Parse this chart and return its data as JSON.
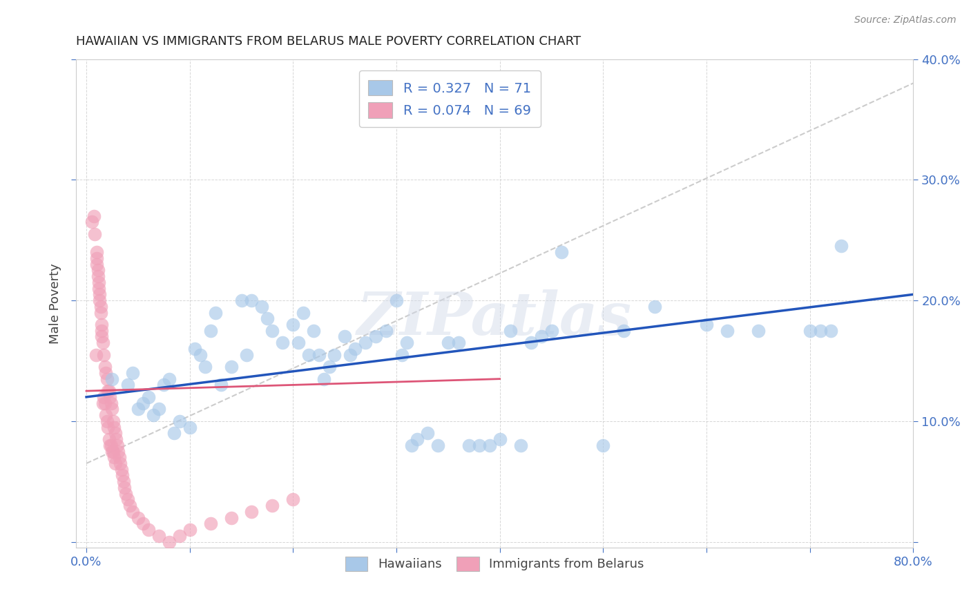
{
  "title": "HAWAIIAN VS IMMIGRANTS FROM BELARUS MALE POVERTY CORRELATION CHART",
  "source": "Source: ZipAtlas.com",
  "ylabel": "Male Poverty",
  "xlim": [
    0.0,
    0.8
  ],
  "ylim": [
    0.0,
    0.4
  ],
  "hawaiians_color": "#a8c8e8",
  "belarus_color": "#f0a0b8",
  "hawaiians_line_color": "#2255bb",
  "belarus_line_color": "#dd5577",
  "dashed_line_color": "#cccccc",
  "watermark": "ZIPatlas",
  "background_color": "#ffffff",
  "hawaii_R": 0.327,
  "hawaii_N": 71,
  "belarus_R": 0.074,
  "belarus_N": 69,
  "hawaii_line_x0": 0.0,
  "hawaii_line_y0": 0.12,
  "hawaii_line_x1": 0.8,
  "hawaii_line_y1": 0.205,
  "belarus_line_x0": 0.0,
  "belarus_line_y0": 0.125,
  "belarus_line_x1": 0.4,
  "belarus_line_y1": 0.135,
  "dashed_line_x0": 0.0,
  "dashed_line_y0": 0.065,
  "dashed_line_x1": 0.8,
  "dashed_line_y1": 0.38,
  "hawaii_pts_x": [
    0.025,
    0.04,
    0.045,
    0.05,
    0.055,
    0.06,
    0.065,
    0.07,
    0.075,
    0.08,
    0.085,
    0.09,
    0.1,
    0.105,
    0.11,
    0.115,
    0.12,
    0.125,
    0.13,
    0.14,
    0.15,
    0.155,
    0.16,
    0.17,
    0.175,
    0.18,
    0.19,
    0.2,
    0.205,
    0.21,
    0.215,
    0.22,
    0.225,
    0.23,
    0.235,
    0.24,
    0.25,
    0.255,
    0.26,
    0.27,
    0.28,
    0.29,
    0.3,
    0.305,
    0.31,
    0.315,
    0.32,
    0.33,
    0.34,
    0.35,
    0.36,
    0.37,
    0.38,
    0.39,
    0.4,
    0.41,
    0.42,
    0.43,
    0.44,
    0.45,
    0.46,
    0.5,
    0.52,
    0.55,
    0.6,
    0.62,
    0.65,
    0.7,
    0.71,
    0.72,
    0.73
  ],
  "hawaii_pts_y": [
    0.135,
    0.13,
    0.14,
    0.11,
    0.115,
    0.12,
    0.105,
    0.11,
    0.13,
    0.135,
    0.09,
    0.1,
    0.095,
    0.16,
    0.155,
    0.145,
    0.175,
    0.19,
    0.13,
    0.145,
    0.2,
    0.155,
    0.2,
    0.195,
    0.185,
    0.175,
    0.165,
    0.18,
    0.165,
    0.19,
    0.155,
    0.175,
    0.155,
    0.135,
    0.145,
    0.155,
    0.17,
    0.155,
    0.16,
    0.165,
    0.17,
    0.175,
    0.2,
    0.155,
    0.165,
    0.08,
    0.085,
    0.09,
    0.08,
    0.165,
    0.165,
    0.08,
    0.08,
    0.08,
    0.085,
    0.175,
    0.08,
    0.165,
    0.17,
    0.175,
    0.24,
    0.08,
    0.175,
    0.195,
    0.18,
    0.175,
    0.175,
    0.175,
    0.175,
    0.175,
    0.245
  ],
  "belarus_pts_x": [
    0.005,
    0.007,
    0.008,
    0.009,
    0.01,
    0.01,
    0.01,
    0.011,
    0.011,
    0.012,
    0.012,
    0.013,
    0.013,
    0.014,
    0.014,
    0.015,
    0.015,
    0.015,
    0.016,
    0.016,
    0.017,
    0.017,
    0.018,
    0.018,
    0.019,
    0.019,
    0.02,
    0.02,
    0.021,
    0.021,
    0.022,
    0.022,
    0.023,
    0.023,
    0.024,
    0.024,
    0.025,
    0.025,
    0.026,
    0.026,
    0.027,
    0.027,
    0.028,
    0.028,
    0.029,
    0.03,
    0.031,
    0.032,
    0.033,
    0.034,
    0.035,
    0.036,
    0.037,
    0.038,
    0.04,
    0.042,
    0.045,
    0.05,
    0.055,
    0.06,
    0.07,
    0.08,
    0.09,
    0.1,
    0.12,
    0.14,
    0.16,
    0.18,
    0.2
  ],
  "belarus_pts_y": [
    0.265,
    0.27,
    0.255,
    0.155,
    0.24,
    0.235,
    0.23,
    0.225,
    0.22,
    0.215,
    0.21,
    0.205,
    0.2,
    0.195,
    0.19,
    0.18,
    0.175,
    0.17,
    0.165,
    0.115,
    0.155,
    0.12,
    0.145,
    0.115,
    0.14,
    0.105,
    0.135,
    0.1,
    0.125,
    0.095,
    0.125,
    0.085,
    0.12,
    0.08,
    0.115,
    0.08,
    0.11,
    0.075,
    0.1,
    0.075,
    0.095,
    0.07,
    0.09,
    0.065,
    0.085,
    0.08,
    0.075,
    0.07,
    0.065,
    0.06,
    0.055,
    0.05,
    0.045,
    0.04,
    0.035,
    0.03,
    0.025,
    0.02,
    0.015,
    0.01,
    0.005,
    0.0,
    0.005,
    0.01,
    0.015,
    0.02,
    0.025,
    0.03,
    0.035
  ]
}
